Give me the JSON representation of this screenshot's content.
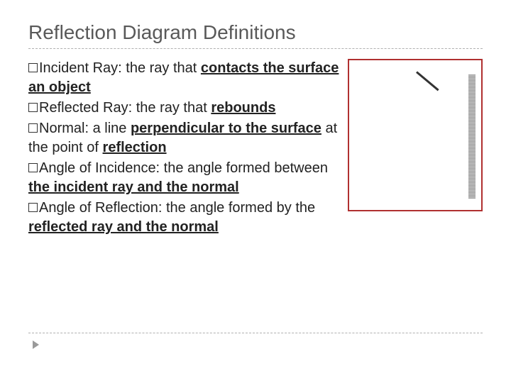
{
  "title": "Reflection Diagram Definitions",
  "definitions": [
    {
      "term": "Incident Ray:",
      "text_before": " the ray that ",
      "emph": "contacts the surface an object",
      "text_after": ""
    },
    {
      "term": "Reflected Ray:",
      "text_before": " the ray that ",
      "emph": "rebounds",
      "text_after": ""
    },
    {
      "term": "Normal:",
      "text_before": " a line ",
      "emph": "perpendicular to the surface",
      "mid_text": " at the point of ",
      "emph2": "reflection",
      "text_after": ""
    },
    {
      "term": "Angle of Incidence:",
      "text_before": " the angle formed between ",
      "emph": "the incident ray and the normal",
      "text_after": ""
    },
    {
      "term": "Angle of Reflection:",
      "text_before": " the angle formed by the ",
      "emph": "reflected ray and the normal",
      "text_after": ""
    }
  ],
  "diagram": {
    "border_color": "#b03030",
    "ray_color": "#333333",
    "surface_color": "#9a9a9a"
  },
  "colors": {
    "title": "#595959",
    "text": "#222222",
    "divider": "#b0b0b0",
    "background": "#ffffff"
  },
  "typography": {
    "title_fontsize": 28,
    "body_fontsize": 20,
    "font_family": "Arial"
  }
}
